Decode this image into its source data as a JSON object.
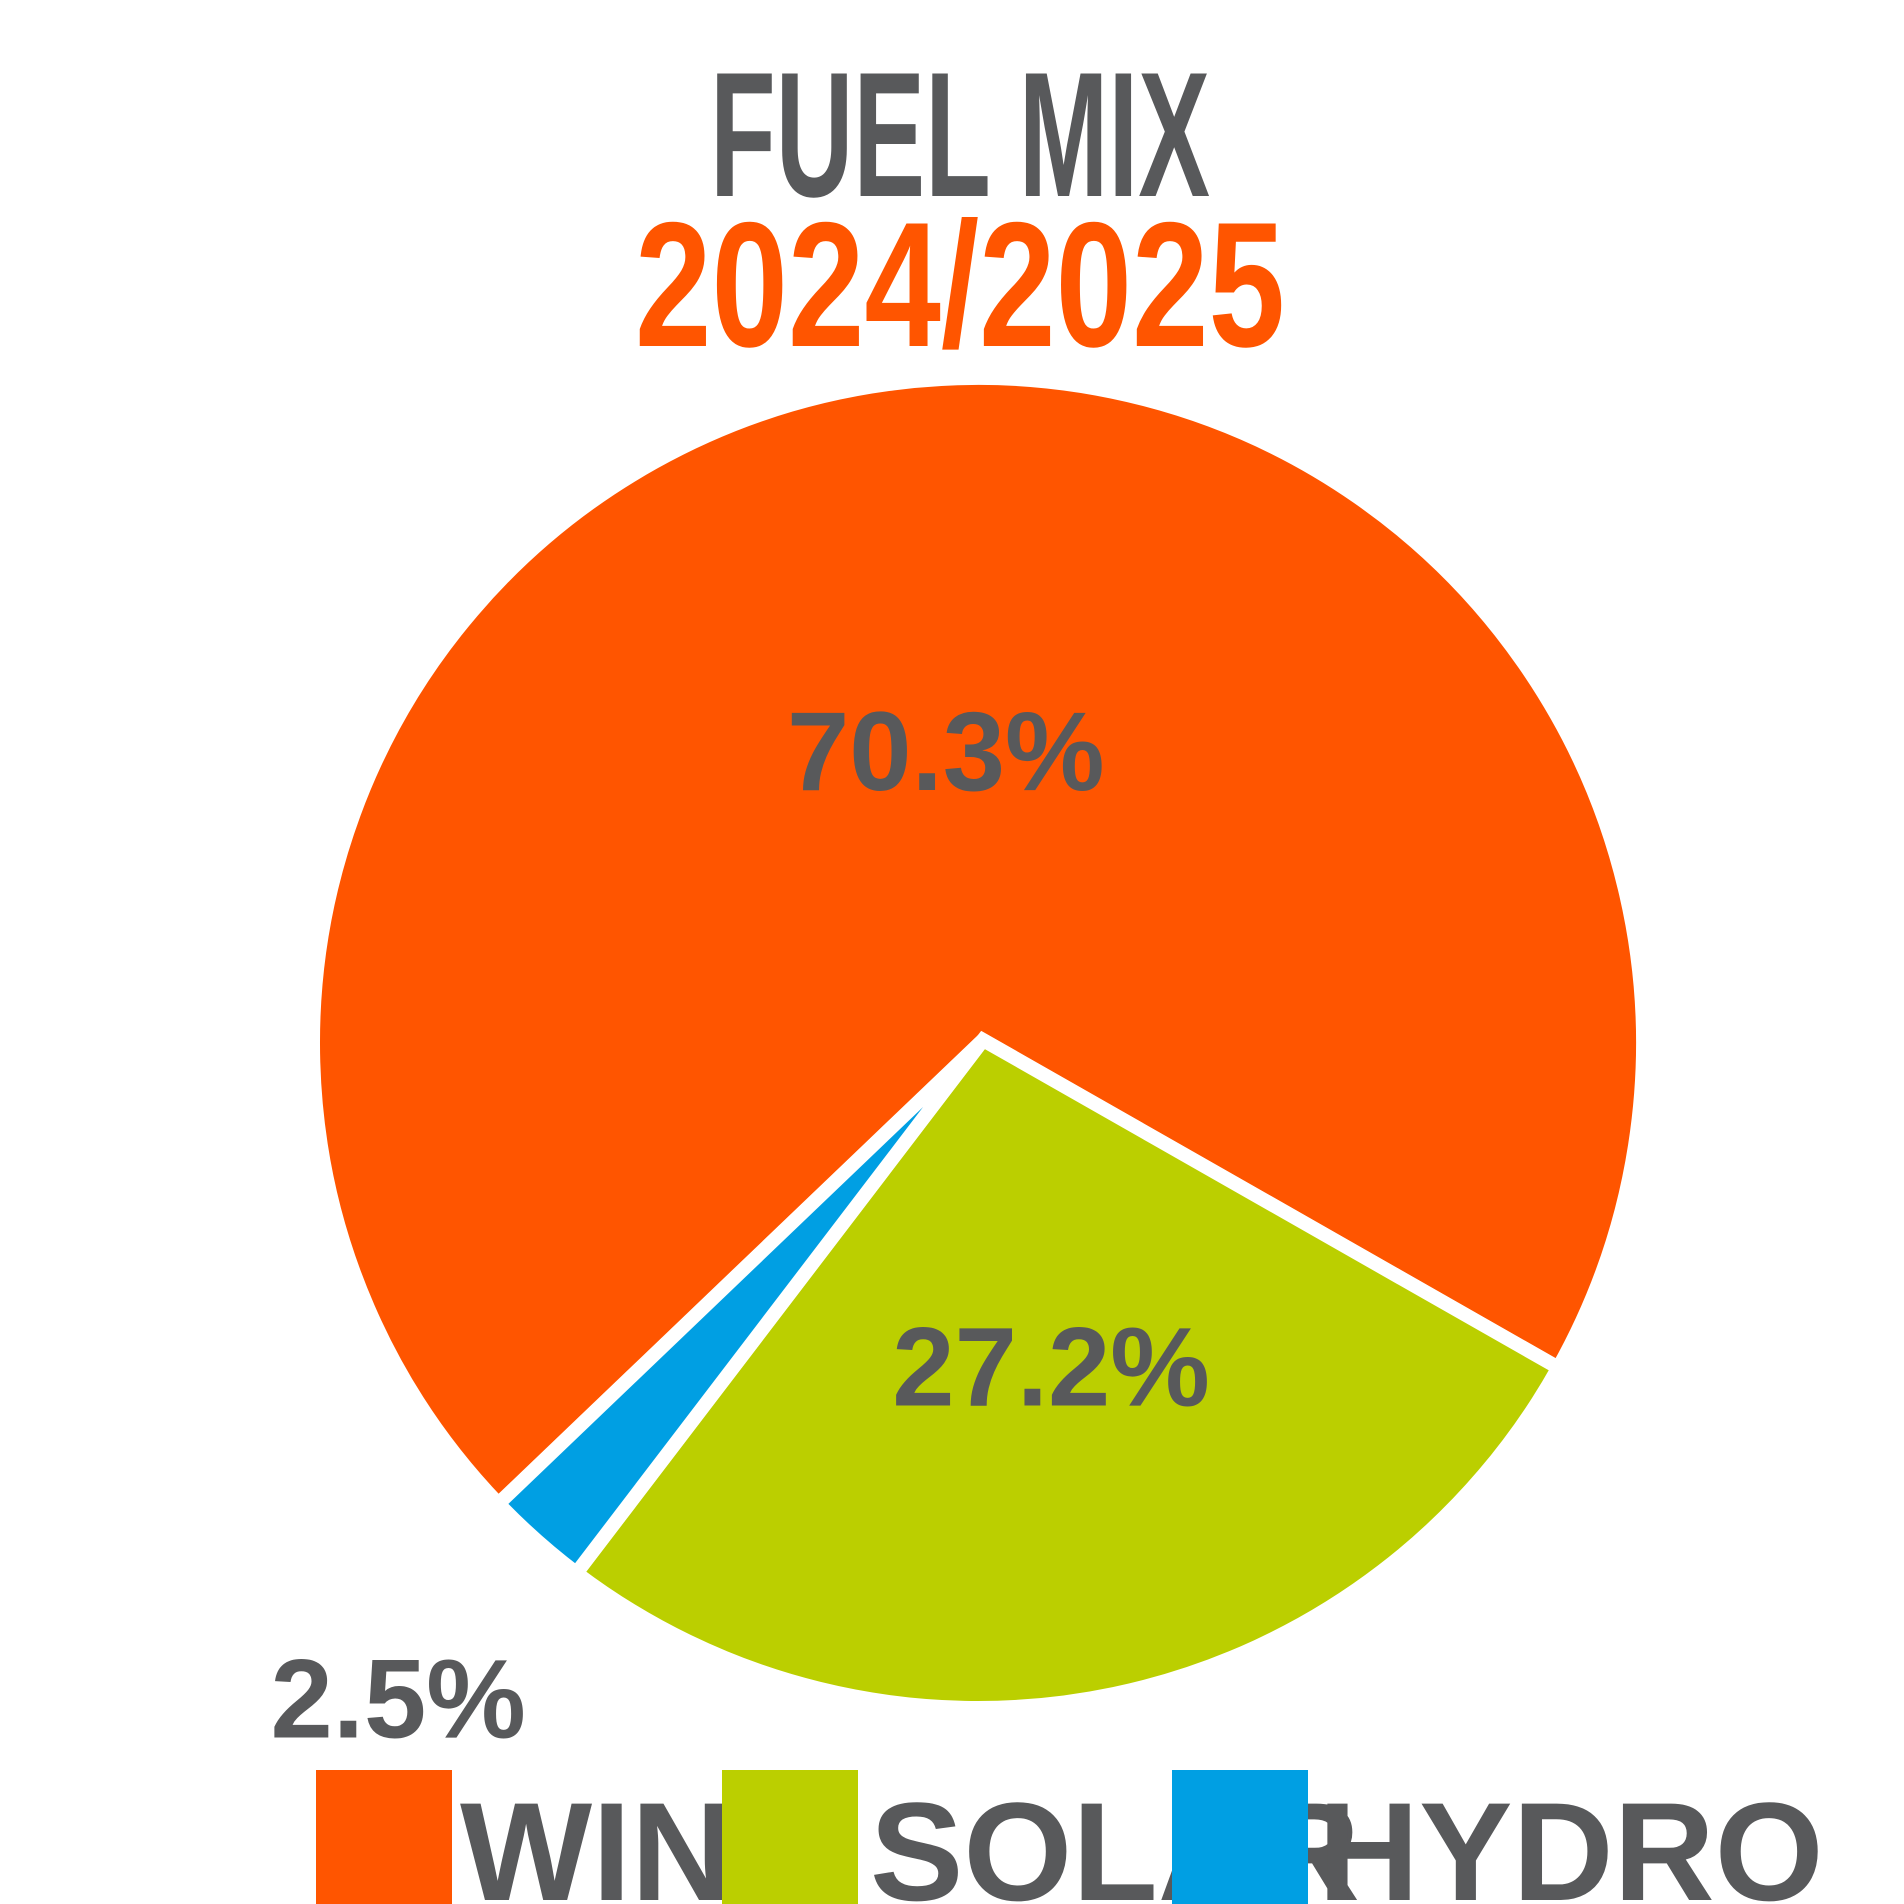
{
  "chart_data": {
    "type": "pie",
    "title": "FUEL MIX",
    "subtitle": "2024/2025",
    "unit": "%",
    "categories": [
      "WIND",
      "SOLAR",
      "HYDRO"
    ],
    "values": [
      70.3,
      27.2,
      2.5
    ],
    "labels": [
      "70.3%",
      "27.2%",
      "2.5%"
    ],
    "colors": [
      "#ff5500",
      "#bbcf00",
      "#009fe3"
    ],
    "legend_position": "bottom"
  },
  "colors": {
    "title": "#58595b",
    "subtitle": "#ff5500",
    "labels": "#58595b",
    "background": "#ffffff"
  }
}
